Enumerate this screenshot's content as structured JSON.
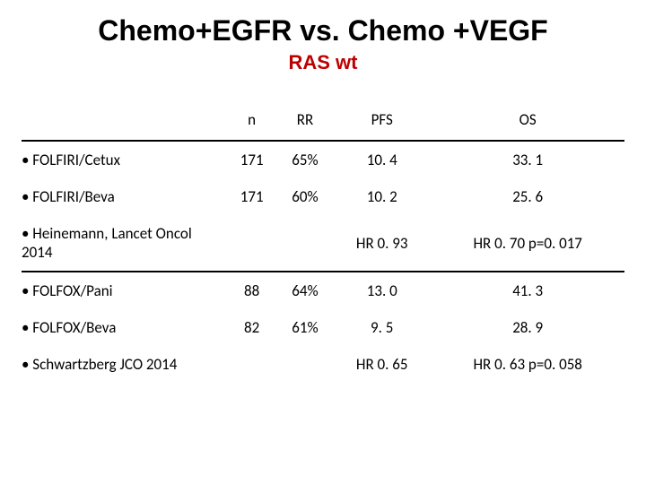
{
  "title": "Chemo+EGFR vs. Chemo +VEGF",
  "subtitle": "RAS wt",
  "title_color": "#000000",
  "subtitle_color": "#bd0000",
  "ref_color": "#bfbfbf",
  "hr_color": "#bfbfbf",
  "columns": {
    "c0": "",
    "c1": "n",
    "c2": "RR",
    "c3": "PFS",
    "c4": "OS"
  },
  "rows": {
    "r1": {
      "label": "• FOLFIRI/Cetux",
      "n": "171",
      "rr": "65%",
      "pfs": "10. 4",
      "os": "33. 1"
    },
    "r2": {
      "label": "• FOLFIRI/Beva",
      "n": "171",
      "rr": "60%",
      "pfs": "10. 2",
      "os": "25. 6"
    },
    "r3": {
      "label": "• Heinemann, Lancet Oncol 2014",
      "pfs": "HR 0. 93",
      "os": "HR 0. 70 p=0. 017"
    },
    "r4": {
      "label": "• FOLFOX/Pani",
      "n": "88",
      "rr": "64%",
      "pfs": "13. 0",
      "os": "41. 3"
    },
    "r5": {
      "label": "• FOLFOX/Beva",
      "n": "82",
      "rr": "61%",
      "pfs": "9. 5",
      "os": "28. 9"
    },
    "r6": {
      "label": "• Schwartzberg JCO 2014",
      "pfs": "HR 0. 65",
      "os": "HR 0. 63 p=0. 058"
    }
  },
  "fontsize": {
    "title": 32,
    "subtitle": 22,
    "body": 17
  }
}
